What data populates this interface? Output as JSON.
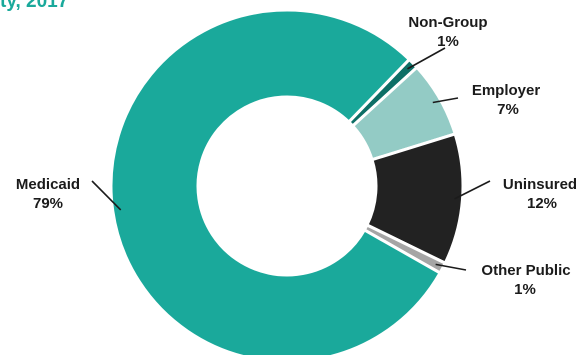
{
  "header": {
    "title_fragment": "ty, 2017"
  },
  "chart_data": {
    "type": "pie",
    "donut": true,
    "slices": [
      {
        "name": "Non-Group",
        "value": 1,
        "label": "1%",
        "color": "#0d6f66"
      },
      {
        "name": "Employer",
        "value": 7,
        "label": "7%",
        "color": "#93cbc5"
      },
      {
        "name": "Uninsured",
        "value": 12,
        "label": "12%",
        "color": "#222222"
      },
      {
        "name": "Other Public",
        "value": 1,
        "label": "1%",
        "color": "#a5a5a5"
      },
      {
        "name": "Medicaid",
        "value": 79,
        "label": "79%",
        "color": "#1aa99b"
      }
    ]
  }
}
